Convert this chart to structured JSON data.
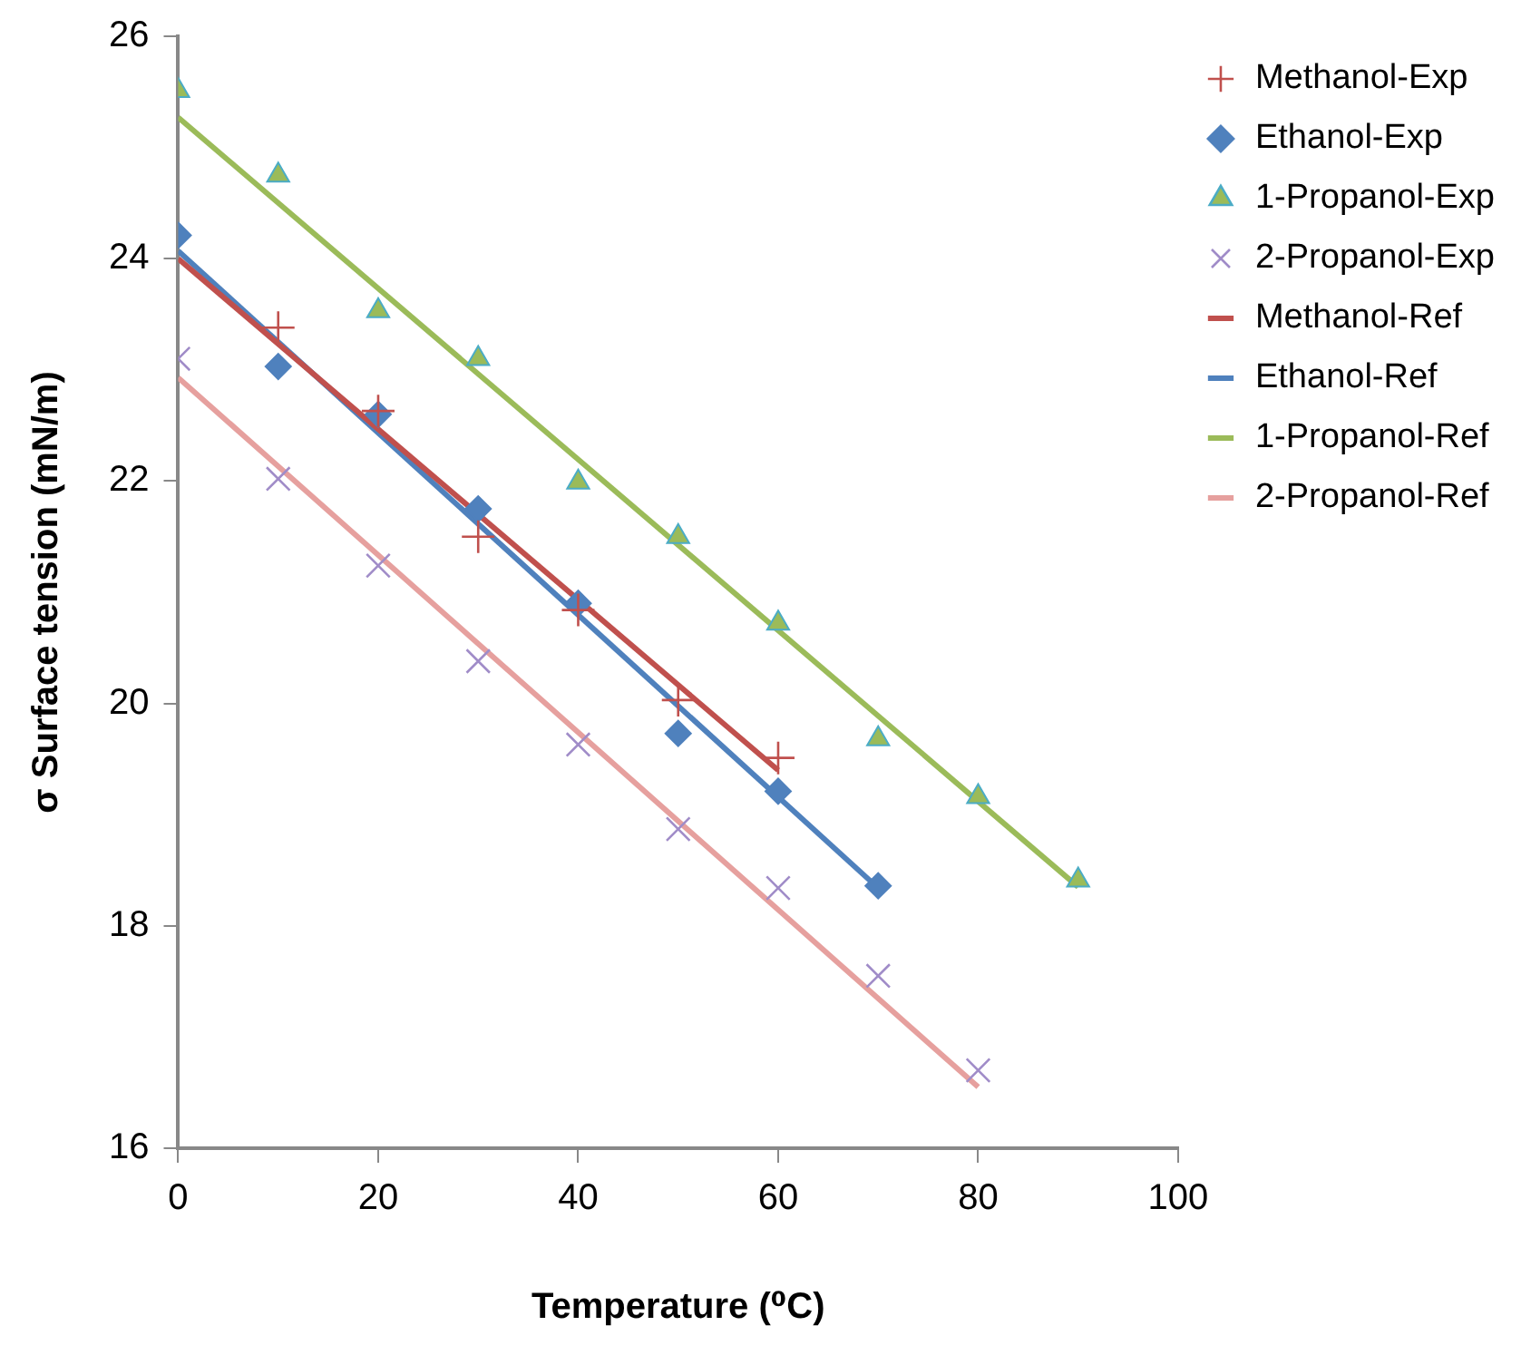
{
  "chart_data": {
    "type": "scatter",
    "xlabel": "Temperature (⁰C)",
    "ylabel": "σ Surface tension (mN/m)",
    "xlim": [
      0,
      100
    ],
    "xticks": [
      0,
      20,
      40,
      60,
      80,
      100
    ],
    "ylim": [
      16,
      26
    ],
    "yticks": [
      16,
      18,
      20,
      22,
      24,
      26
    ],
    "grid": false,
    "legend": "right",
    "series": [
      {
        "name": "Methanol-Exp",
        "type": "scatter",
        "marker": "cross",
        "color": "#c0504d",
        "x": [
          10,
          20,
          30,
          40,
          50,
          60
        ],
        "values": [
          23.38,
          22.63,
          21.5,
          20.84,
          20.03,
          19.51
        ]
      },
      {
        "name": "Ethanol-Exp",
        "type": "scatter",
        "marker": "diamond",
        "color": "#4f81bd",
        "x": [
          0,
          10,
          20,
          30,
          40,
          50,
          60,
          70
        ],
        "values": [
          24.21,
          23.03,
          22.6,
          21.75,
          20.9,
          19.73,
          19.21,
          18.36
        ]
      },
      {
        "name": "1-Propanol-Exp",
        "type": "scatter",
        "marker": "triangle",
        "color": "#9bbb59",
        "x": [
          0,
          10,
          20,
          30,
          40,
          50,
          60,
          70,
          80,
          90
        ],
        "values": [
          25.51,
          24.75,
          23.53,
          23.1,
          21.99,
          21.5,
          20.72,
          19.68,
          19.16,
          18.41
        ]
      },
      {
        "name": "2-Propanol-Exp",
        "type": "scatter",
        "marker": "cross",
        "color": "#a08cc8",
        "x": [
          0,
          10,
          20,
          30,
          40,
          50,
          60,
          70,
          80
        ],
        "values": [
          23.1,
          22.02,
          21.24,
          20.38,
          19.63,
          18.87,
          18.34,
          17.55,
          16.7
        ]
      },
      {
        "name": "Methanol-Ref",
        "type": "line",
        "marker": "none",
        "color": "#c0504d",
        "x": [
          0,
          60
        ],
        "values": [
          24.0,
          19.4
        ]
      },
      {
        "name": "Ethanol-Ref",
        "type": "line",
        "marker": "none",
        "color": "#4f81bd",
        "x": [
          0,
          70
        ],
        "values": [
          24.07,
          18.34
        ]
      },
      {
        "name": "1-Propanol-Ref",
        "type": "line",
        "marker": "none",
        "color": "#9bbb59",
        "x": [
          0,
          90
        ],
        "values": [
          25.27,
          18.35
        ]
      },
      {
        "name": "2-Propanol-Ref",
        "type": "line",
        "marker": "none",
        "color": "#e6a09e",
        "x": [
          0,
          80
        ],
        "values": [
          22.93,
          16.55
        ]
      }
    ]
  }
}
